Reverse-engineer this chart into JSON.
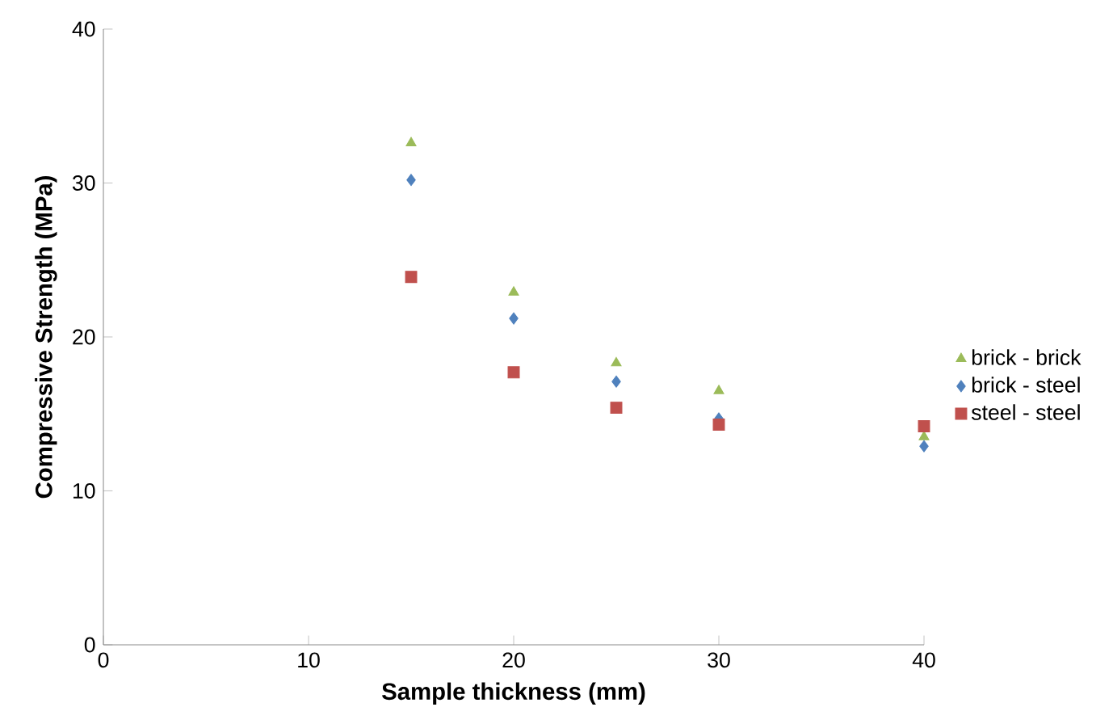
{
  "chart_data": {
    "type": "scatter",
    "xlabel": "Sample thickness (mm)",
    "ylabel": "Compressive Strength (MPa)",
    "xlim": [
      0,
      40
    ],
    "ylim": [
      0,
      40
    ],
    "xticks": [
      0,
      10,
      20,
      30,
      40
    ],
    "yticks": [
      0,
      10,
      20,
      30,
      40
    ],
    "grid": false,
    "legend": "right",
    "series": [
      {
        "name": "brick - brick",
        "color": "#9bbb59",
        "marker": "triangle",
        "x": [
          15,
          20,
          25,
          30,
          40
        ],
        "values": [
          32.6,
          22.9,
          18.3,
          16.5,
          13.5
        ]
      },
      {
        "name": "brick - steel",
        "color": "#4f81bd",
        "marker": "diamond",
        "x": [
          15,
          20,
          25,
          30,
          40
        ],
        "values": [
          30.2,
          21.2,
          17.1,
          14.7,
          12.9
        ]
      },
      {
        "name": "steel - steel",
        "color": "#c0504d",
        "marker": "square",
        "x": [
          15,
          20,
          25,
          30,
          40
        ],
        "values": [
          23.9,
          17.7,
          15.4,
          14.3,
          14.2
        ]
      }
    ]
  }
}
